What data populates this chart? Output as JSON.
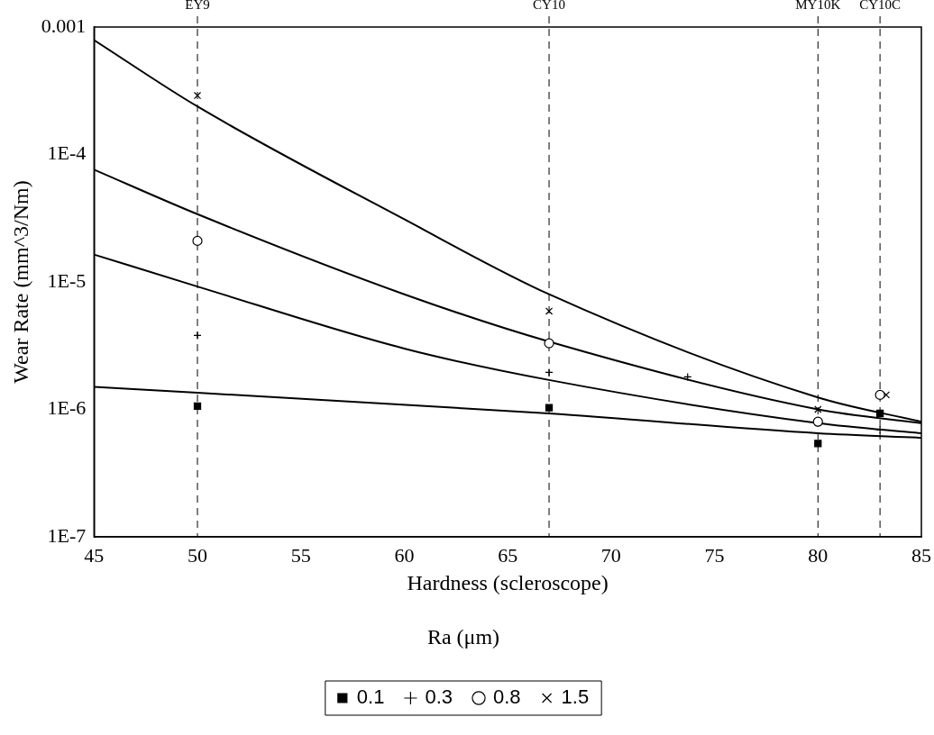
{
  "chart_data": {
    "type": "scatter",
    "xlabel": "Hardness (scleroscope)",
    "ylabel": "Wear Rate (mm^3/Nm)",
    "legend_title": "Ra (μm)",
    "legend": "bottom",
    "log": "y",
    "grid": false,
    "xlim": [
      45,
      85
    ],
    "xticks": [
      45,
      50,
      55,
      60,
      65,
      70,
      75,
      80,
      85
    ],
    "ylim": [
      1e-07,
      0.001
    ],
    "yticks": [
      {
        "value": 1e-07,
        "label": "1E-7"
      },
      {
        "value": 1e-06,
        "label": "1E-6"
      },
      {
        "value": 1e-05,
        "label": "1E-5"
      },
      {
        "value": 0.0001,
        "label": "1E-4"
      },
      0.001
    ],
    "ref_lines": [
      {
        "axis": "x",
        "value": 50,
        "label": "EY9",
        "line_style": "dashed",
        "color": "#000000"
      },
      {
        "axis": "x",
        "value": 67,
        "label": "CY10",
        "line_style": "dashed",
        "color": "#000000"
      },
      {
        "axis": "x",
        "value": 80,
        "label": "MY10K",
        "line_style": "dashed",
        "color": "#000000"
      },
      {
        "axis": "x",
        "value": 83,
        "label": "CY10C",
        "line_style": "dashed",
        "color": "#000000"
      }
    ],
    "series": [
      {
        "name": "0.1",
        "color": "#000000",
        "marker": "square",
        "x": [
          50,
          67,
          80,
          83
        ],
        "values": [
          1.06e-06,
          1.03e-06,
          5.4e-07,
          9.3e-07
        ]
      },
      {
        "name": "0.3",
        "color": "#000000",
        "marker": "plus",
        "x": [
          50,
          67,
          73.7,
          83
        ],
        "values": [
          3.8e-06,
          1.95e-06,
          1.8e-06,
          6.9e-07
        ]
      },
      {
        "name": "0.8",
        "color": "#000000",
        "marker": "circle",
        "x": [
          50,
          67,
          80,
          83
        ],
        "values": [
          2.1e-05,
          3.3e-06,
          8e-07,
          1.3e-06
        ]
      },
      {
        "name": "1.5",
        "color": "#000000",
        "marker": "cross",
        "x": [
          50,
          67,
          80,
          83.3
        ],
        "values": [
          0.00029,
          5.9e-06,
          1e-06,
          1.3e-06
        ]
      },
      {
        "type": "line",
        "color": "#000000",
        "marker": "none",
        "line_style": "solid",
        "x": [
          45,
          50,
          67,
          80,
          85
        ],
        "values": [
          1.5e-06,
          1.35e-06,
          9.3e-07,
          6.5e-07,
          6e-07
        ]
      },
      {
        "type": "line",
        "color": "#000000",
        "marker": "none",
        "line_style": "solid",
        "x": [
          45,
          50,
          60,
          67,
          80,
          85
        ],
        "values": [
          1.64e-05,
          9.2e-06,
          3e-06,
          1.7e-06,
          7.8e-07,
          6.5e-07
        ]
      },
      {
        "type": "line",
        "color": "#000000",
        "marker": "none",
        "line_style": "solid",
        "x": [
          45,
          50,
          60,
          67,
          80,
          85
        ],
        "values": [
          7.6e-05,
          3.4e-05,
          8e-06,
          3.4e-06,
          1e-06,
          7.8e-07
        ]
      },
      {
        "type": "line",
        "color": "#000000",
        "marker": "none",
        "line_style": "solid",
        "x": [
          45,
          50,
          60,
          67,
          80,
          85
        ],
        "values": [
          0.00079,
          0.000238,
          3.1e-05,
          8e-06,
          1.24e-06,
          8e-07
        ]
      }
    ]
  }
}
